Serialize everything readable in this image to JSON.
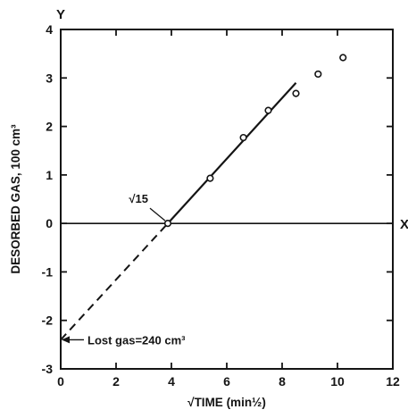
{
  "chart_data": {
    "type": "scatter",
    "title": "",
    "xlabel": "√TIME (min½)",
    "ylabel": "DESORBED GAS, 100 cm³",
    "xlim": [
      0,
      12
    ],
    "ylim": [
      -3,
      4
    ],
    "x_ticks": [
      "0",
      "2",
      "4",
      "6",
      "8",
      "10",
      "12"
    ],
    "y_ticks": [
      "-3",
      "-2",
      "-1",
      "0",
      "1",
      "2",
      "3",
      "4"
    ],
    "x_axis_name": "X",
    "y_axis_name": "Y",
    "grid": false,
    "series": [
      {
        "marker": "open-circle",
        "x": [
          3.87,
          5.4,
          6.6,
          7.5,
          8.5,
          9.3,
          10.2
        ],
        "y": [
          0.0,
          0.93,
          1.77,
          2.33,
          2.68,
          3.08,
          3.42
        ]
      }
    ],
    "fit_line": {
      "x": [
        3.87,
        8.5
      ],
      "y": [
        0.0,
        2.9
      ],
      "style": "solid"
    },
    "extrapolation": {
      "x": [
        0,
        3.87
      ],
      "y": [
        -2.4,
        0.0
      ],
      "style": "dashed"
    },
    "zero_line": {
      "y": 0
    },
    "annotations": [
      {
        "text": "√15",
        "x": 3.87,
        "y": 0.0
      },
      {
        "text": "Lost gas=240 cm³",
        "x": 0,
        "y": -2.4
      }
    ]
  }
}
